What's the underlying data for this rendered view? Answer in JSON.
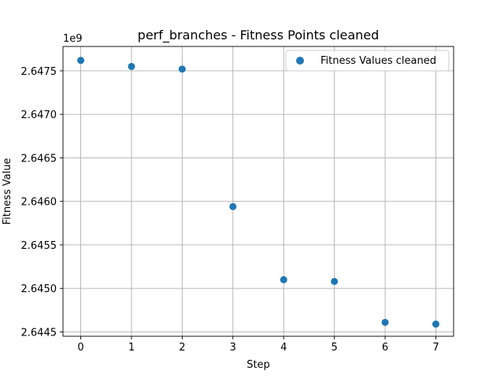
{
  "chart_data": {
    "type": "scatter",
    "title": "perf_branches - Fitness Points cleaned",
    "xlabel": "Step",
    "ylabel": "Fitness Value",
    "offset_label": "1e9",
    "x": [
      0,
      1,
      2,
      3,
      4,
      5,
      6,
      7
    ],
    "series": [
      {
        "name": "Fitness Values cleaned",
        "color": "#1f77b4",
        "values": [
          2647620000,
          2647550000,
          2647520000,
          2645940000,
          2645100000,
          2645080000,
          2644610000,
          2644590000
        ]
      }
    ],
    "xlim": [
      -0.35,
      7.35
    ],
    "ylim": [
      2644450000,
      2647780000
    ],
    "xticks": [
      0,
      1,
      2,
      3,
      4,
      5,
      6,
      7
    ],
    "xtick_labels": [
      "0",
      "1",
      "2",
      "3",
      "4",
      "5",
      "6",
      "7"
    ],
    "yticks": [
      2644500000,
      2645000000,
      2645500000,
      2646000000,
      2646500000,
      2647000000,
      2647500000
    ],
    "ytick_labels": [
      "2.6445",
      "2.6450",
      "2.6455",
      "2.6460",
      "2.6465",
      "2.6470",
      "2.6475"
    ],
    "grid": true,
    "legend_position": "top-right"
  }
}
